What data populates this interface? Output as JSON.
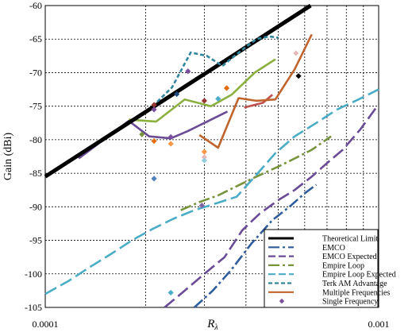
{
  "chart_data": {
    "type": "line",
    "title": "",
    "xlabel": "Rλ",
    "ylabel": "Gain (dBi)",
    "xscale": "log",
    "xlim": [
      0.0001,
      0.001
    ],
    "ylim": [
      -105,
      -60
    ],
    "x_ticks_labeled": [
      "0.0001",
      "0.001"
    ],
    "y_ticks": [
      -60,
      -65,
      -70,
      -75,
      -80,
      -85,
      -90,
      -95,
      -100,
      -105
    ],
    "grid": true,
    "legend_position": "bottom-right",
    "series": [
      {
        "name": "Theoretical Limit",
        "color": "#000000",
        "style": "solid-thick",
        "x": [
          0.0001,
          0.000625
        ],
        "y": [
          -85.5,
          -60
        ]
      },
      {
        "name": "EMCO",
        "color": "#2e5d9c",
        "style": "dash-dot",
        "x": [
          0.00028,
          0.000318,
          0.00036,
          0.000415,
          0.00048,
          0.00054,
          0.0006,
          0.00065
        ],
        "y": [
          -105,
          -102.5,
          -99.5,
          -95.5,
          -92,
          -90,
          -88,
          -86.7
        ]
      },
      {
        "name": "EMCO Expected",
        "color": "#6a4c96",
        "style": "long-dash",
        "x": [
          0.000228,
          0.000262,
          0.0003,
          0.000345,
          0.00039,
          0.00044,
          0.0005,
          0.00056,
          0.00063,
          0.0007,
          0.00078,
          0.00088,
          0.00099
        ],
        "y": [
          -105,
          -102.5,
          -100,
          -97.5,
          -93.5,
          -91,
          -89,
          -87.5,
          -85.5,
          -83.5,
          -81.5,
          -78.5,
          -75
        ]
      },
      {
        "name": "Empire Loop",
        "color": "#77933c",
        "style": "dash-dot",
        "x": [
          0.000255,
          0.00029,
          0.00033,
          0.00038,
          0.00043,
          0.0005,
          0.00056,
          0.00063,
          0.00072
        ],
        "y": [
          -90.5,
          -89.3,
          -88.3,
          -86.8,
          -85.5,
          -84,
          -82.8,
          -81.5,
          -79.5
        ]
      },
      {
        "name": "Empire Loop Expected",
        "color": "#4bacc6",
        "style": "long-dash",
        "x": [
          0.0001,
          0.000118,
          0.000136,
          0.000158,
          0.000182,
          0.00021,
          0.000242,
          0.00028,
          0.000325,
          0.000375,
          0.000425,
          0.00049,
          0.00056,
          0.00065,
          0.00075,
          0.00087,
          0.001
        ],
        "y": [
          -103,
          -101,
          -99,
          -97,
          -95,
          -93.3,
          -91.8,
          -90.5,
          -89.5,
          -88.5,
          -85.5,
          -82,
          -79.5,
          -77.5,
          -75.5,
          -74,
          -72.5
        ]
      },
      {
        "name": "Terk AM Advantage",
        "color": "#31859c",
        "style": "short-dash",
        "x": [
          0.00021,
          0.00024,
          0.000273,
          0.000305,
          0.00034,
          0.000385,
          0.00043,
          0.00047,
          0.0005
        ],
        "y": [
          -75,
          -72.2,
          -67,
          -67.5,
          -69,
          -66.8,
          -65,
          -64.6,
          -64.8
        ]
      },
      {
        "name": "Multiple Frequencies",
        "color": "#c0642d",
        "style": "solid",
        "x": [
          0.00029,
          0.00033,
          0.00038,
          0.00043,
          0.00049,
          0.00056,
          0.00063
        ],
        "y": [
          -79.3,
          -81.2,
          -73.8,
          -74.2,
          -74,
          -69.5,
          -64.3
        ]
      },
      {
        "name": "Single Frequency",
        "color": "#7b4fa0",
        "style": "markers",
        "x": [],
        "y": []
      }
    ],
    "unlabeled_series": [
      {
        "color": "#6a4c96",
        "x": [
          0.000126,
          0.000178,
          0.000205,
          0.000238,
          0.000268,
          0.0003,
          0.000352
        ],
        "y": [
          -82.8,
          -77.2,
          -79.5,
          -79.8,
          -78.7,
          -77.5,
          -75.8
        ]
      },
      {
        "color": "#8cb040",
        "x": [
          0.000178,
          0.000215,
          0.000262,
          0.000314,
          0.000362,
          0.000425,
          0.00049
        ],
        "y": [
          -77,
          -77.3,
          -74,
          -75,
          -73.3,
          -70,
          -68
        ]
      },
      {
        "color": "#c0504d",
        "x": [
          0.000395,
          0.00045,
          0.00048
        ],
        "y": [
          -75.2,
          -74.5,
          -73.3
        ]
      }
    ],
    "markers": [
      {
        "x": 0.000212,
        "y": -74.8,
        "color": "#953735"
      },
      {
        "x": 0.000212,
        "y": -75.5,
        "color": "#7b4fa0"
      },
      {
        "x": 0.000212,
        "y": -85.8,
        "color": "#4f81bd"
      },
      {
        "x": 0.000212,
        "y": -80.2,
        "color": "#e46c0a"
      },
      {
        "x": 0.000195,
        "y": -79.2,
        "color": "#77933c"
      },
      {
        "x": 0.000238,
        "y": -79.6,
        "color": "#7b4fa0"
      },
      {
        "x": 0.000238,
        "y": -80.6,
        "color": "#f79646"
      },
      {
        "x": 0.000248,
        "y": -73.2,
        "color": "#1f497d"
      },
      {
        "x": 0.000268,
        "y": -69.8,
        "color": "#7b4fa0"
      },
      {
        "x": 0.0003,
        "y": -74.2,
        "color": "#953735"
      },
      {
        "x": 0.0003,
        "y": -81.8,
        "color": "#f79646"
      },
      {
        "x": 0.0003,
        "y": -82.6,
        "color": "#e6b9b8"
      },
      {
        "x": 0.0003,
        "y": -83.1,
        "color": "#92cddc"
      },
      {
        "x": 0.00033,
        "y": -73.9,
        "color": "#4bacc6"
      },
      {
        "x": 0.00035,
        "y": -72.3,
        "color": "#e46c0a"
      },
      {
        "x": 0.000565,
        "y": -67.1,
        "color": "#e6b9b8"
      },
      {
        "x": 0.000575,
        "y": -70.5,
        "color": "#000000"
      },
      {
        "x": 0.000295,
        "y": -89.8,
        "color": "#8064a2"
      },
      {
        "x": 0.000238,
        "y": -102.8,
        "color": "#4bacc6"
      }
    ]
  }
}
